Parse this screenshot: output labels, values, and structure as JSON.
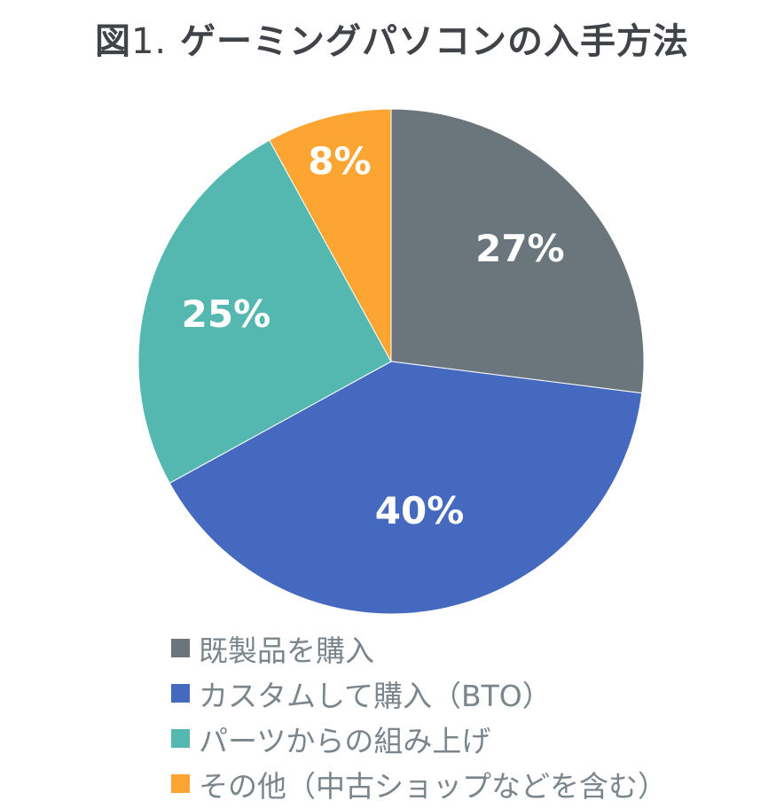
{
  "title": {
    "prefix": "図",
    "number": "1.",
    "text": "ゲーミングパソコンの入手方法"
  },
  "chart_data": {
    "type": "pie",
    "title": "図1. ゲーミングパソコンの入手方法",
    "categories": [
      "既製品を購入",
      "カスタムして購入（BTO）",
      "パーツからの組み上げ",
      "その他（中古ショップなどを含む）"
    ],
    "values": [
      27,
      40,
      25,
      8
    ],
    "labels": [
      "27%",
      "40%",
      "25%",
      "8%"
    ],
    "colors": [
      "#6b767c",
      "#4569be",
      "#55b8b0",
      "#fca532"
    ],
    "start_angle": "12 o'clock",
    "direction": "clockwise",
    "legend_position": "bottom"
  },
  "legend": {
    "items": [
      {
        "label": "既製品を購入",
        "color": "#6b767c"
      },
      {
        "label": "カスタムして購入（BTO）",
        "color": "#4569be"
      },
      {
        "label": "パーツからの組み上げ",
        "color": "#55b8b0"
      },
      {
        "label": "その他（中古ショップなどを含む）",
        "color": "#fca532"
      }
    ]
  }
}
